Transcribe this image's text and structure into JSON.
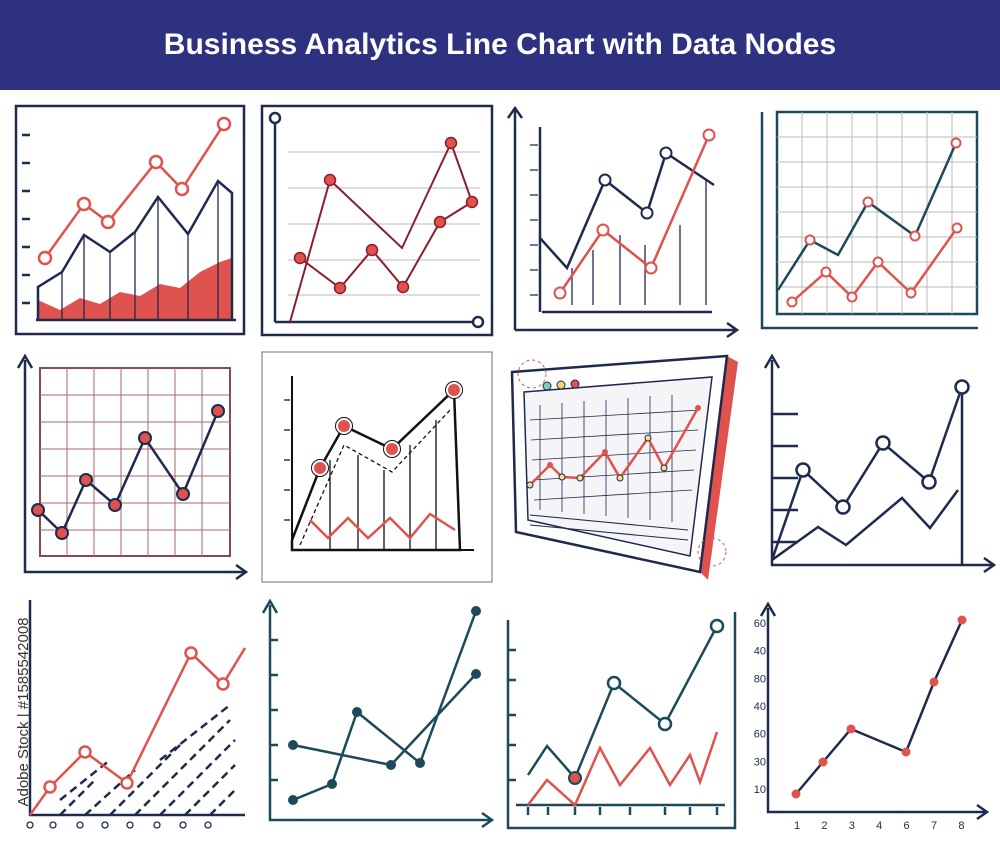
{
  "header": {
    "title": "Business Analytics Line Chart with Data Nodes"
  },
  "watermark": "Adobe Stock | #1585542008",
  "panel_12": {
    "y_labels": [
      60,
      40,
      80,
      40,
      60,
      30,
      10
    ],
    "x_labels": [
      1,
      2,
      3,
      4,
      6,
      7,
      8
    ]
  }
}
